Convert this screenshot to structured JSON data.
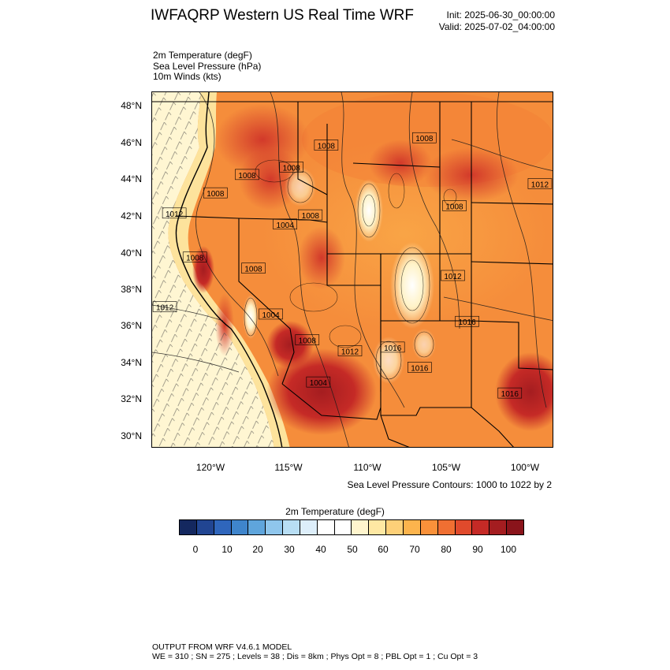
{
  "header": {
    "title": "IWFAQRP Western US Real Time WRF",
    "init": "Init: 2025-06-30_00:00:00",
    "valid": "Valid: 2025-07-02_04:00:00"
  },
  "fields": [
    "2m Temperature   (degF)",
    "Sea Level Pressure   (hPa)",
    "10m Winds   (kts)"
  ],
  "map": {
    "lat_labels": [
      "48°N",
      "46°N",
      "44°N",
      "42°N",
      "40°N",
      "38°N",
      "36°N",
      "34°N",
      "32°N",
      "30°N"
    ],
    "lon_labels": [
      "120°W",
      "115°W",
      "110°W",
      "105°W",
      "100°W"
    ],
    "lon_range": [
      -123.8,
      -98.4
    ],
    "lat_range": [
      29.4,
      48.8
    ],
    "pressure_labels": [
      {
        "text": "1008",
        "lon": -112.8,
        "lat": 45.9
      },
      {
        "text": "1008",
        "lon": -106.6,
        "lat": 46.3
      },
      {
        "text": "1008",
        "lon": -117.8,
        "lat": 44.3
      },
      {
        "text": "1008",
        "lon": -115.0,
        "lat": 44.7
      },
      {
        "text": "1008",
        "lon": -119.8,
        "lat": 43.3
      },
      {
        "text": "1012",
        "lon": -99.3,
        "lat": 43.8
      },
      {
        "text": "1008",
        "lon": -104.7,
        "lat": 42.6
      },
      {
        "text": "1012",
        "lon": -122.4,
        "lat": 42.2
      },
      {
        "text": "1008",
        "lon": -113.8,
        "lat": 42.1
      },
      {
        "text": "1004",
        "lon": -115.4,
        "lat": 41.6
      },
      {
        "text": "1008",
        "lon": -121.1,
        "lat": 39.8
      },
      {
        "text": "1008",
        "lon": -117.4,
        "lat": 39.2
      },
      {
        "text": "1012",
        "lon": -104.8,
        "lat": 38.8
      },
      {
        "text": "1012",
        "lon": -123.0,
        "lat": 37.1
      },
      {
        "text": "1004",
        "lon": -116.3,
        "lat": 36.7
      },
      {
        "text": "1016",
        "lon": -103.9,
        "lat": 36.3
      },
      {
        "text": "1008",
        "lon": -114.0,
        "lat": 35.3
      },
      {
        "text": "1012",
        "lon": -111.3,
        "lat": 34.7
      },
      {
        "text": "1016",
        "lon": -108.6,
        "lat": 34.9
      },
      {
        "text": "1016",
        "lon": -106.9,
        "lat": 33.8
      },
      {
        "text": "1004",
        "lon": -113.3,
        "lat": 33.0
      },
      {
        "text": "1016",
        "lon": -101.2,
        "lat": 32.4
      }
    ]
  },
  "contour_note": "Sea Level Pressure Contours: 1000 to 1022 by 2",
  "colorbar": {
    "title": "2m Temperature  (degF)",
    "labels": [
      "0",
      "10",
      "20",
      "30",
      "40",
      "50",
      "60",
      "70",
      "80",
      "90",
      "100"
    ],
    "colors": [
      "#14285f",
      "#214592",
      "#2f66bc",
      "#3f85cc",
      "#5fa5dc",
      "#8fc6ec",
      "#b8def4",
      "#ddeefa",
      "#ffffff",
      "#ffffff",
      "#fff5cd",
      "#fee8a3",
      "#fdd078",
      "#fcb44d",
      "#f9913a",
      "#f06f32",
      "#e04a2c",
      "#c52a26",
      "#a41d20",
      "#8a141b"
    ]
  },
  "footer": {
    "line1": "OUTPUT FROM WRF V4.6.1 MODEL",
    "line2": "WE = 310 ; SN = 275 ; Levels = 38 ; Dis = 8km ; Phys Opt = 8 ; PBL Opt = 1 ; Cu Opt = 3"
  }
}
